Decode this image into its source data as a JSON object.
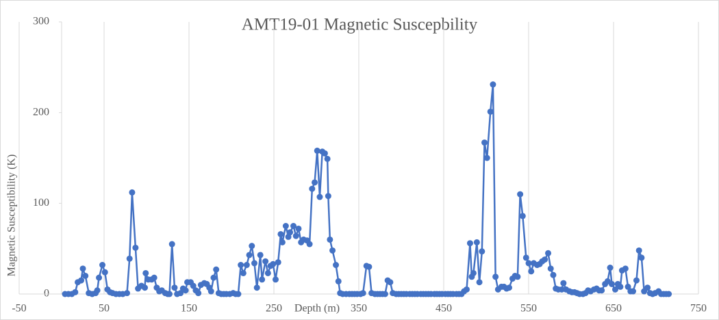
{
  "chart_data": {
    "type": "scatter",
    "title": "AMT19-01 Magnetic Suscepbility",
    "x_label": "Depth (m)",
    "y_label": "Magnetic Susceptibility (K)",
    "xlim": [
      -50,
      750
    ],
    "xticks": [
      -50,
      50,
      150,
      250,
      350,
      450,
      550,
      650,
      750
    ],
    "ylim": [
      0,
      300
    ],
    "yticks": [
      0,
      100,
      200,
      300
    ],
    "grid": "x",
    "series": [
      {
        "name": "AMT19-01",
        "color": "#4472c4",
        "x": [
          4,
          8,
          12,
          16,
          19,
          23,
          25,
          28,
          32,
          36,
          40,
          42,
          44,
          48,
          51,
          54,
          57,
          60,
          64,
          68,
          72,
          77,
          80,
          83,
          87,
          90,
          94,
          98,
          99,
          102,
          106,
          109,
          112,
          115,
          118,
          122,
          125,
          127,
          130,
          133,
          136,
          140,
          143,
          146,
          148,
          152,
          155,
          158,
          161,
          164,
          168,
          171,
          174,
          176,
          179,
          182,
          185,
          188,
          191,
          194,
          198,
          202,
          205,
          208,
          211,
          214,
          218,
          221,
          224,
          227,
          230,
          234,
          236,
          240,
          243,
          246,
          249,
          252,
          255,
          258,
          260,
          264,
          267,
          269,
          273,
          276,
          279,
          282,
          285,
          289,
          292,
          295,
          298,
          301,
          304,
          307,
          310,
          313,
          314,
          316,
          319,
          323,
          326,
          328,
          331,
          335,
          339,
          342,
          345,
          348,
          352,
          355,
          359,
          362,
          365,
          369,
          372,
          375,
          378,
          381,
          384,
          387,
          390,
          394,
          397,
          400,
          403,
          406,
          410,
          413,
          416,
          419,
          423,
          426,
          429,
          432,
          435,
          439,
          442,
          445,
          448,
          452,
          455,
          458,
          461,
          465,
          468,
          471,
          474,
          477,
          481,
          483,
          485,
          489,
          492,
          495,
          498,
          501,
          505,
          508,
          511,
          514,
          518,
          521,
          524,
          527,
          531,
          534,
          537,
          540,
          543,
          547,
          550,
          553,
          556,
          560,
          563,
          566,
          569,
          573,
          576,
          579,
          582,
          585,
          589,
          591,
          594,
          598,
          601,
          604,
          607,
          610,
          614,
          617,
          620,
          623,
          627,
          630,
          633,
          636,
          640,
          643,
          646,
          648,
          652,
          655,
          658,
          660,
          664,
          667,
          670,
          673,
          677,
          680,
          683,
          686,
          690,
          693,
          696,
          699,
          703,
          706,
          709,
          712,
          715
        ],
        "values": [
          0,
          0,
          0,
          2,
          13,
          15,
          28,
          20,
          1,
          0,
          1,
          4,
          18,
          32,
          24,
          5,
          2,
          1,
          0,
          0,
          0,
          1,
          39,
          112,
          51,
          6,
          9,
          7,
          23,
          16,
          16,
          18,
          7,
          3,
          4,
          1,
          0,
          0,
          55,
          7,
          0,
          1,
          6,
          4,
          13,
          13,
          9,
          4,
          1,
          10,
          12,
          11,
          7,
          3,
          18,
          27,
          1,
          0,
          0,
          0,
          0,
          1,
          0,
          0,
          32,
          23,
          32,
          43,
          53,
          34,
          7,
          43,
          16,
          36,
          23,
          31,
          33,
          16,
          35,
          66,
          57,
          75,
          63,
          68,
          75,
          64,
          72,
          57,
          60,
          59,
          55,
          116,
          123,
          158,
          107,
          157,
          155,
          149,
          108,
          60,
          48,
          32,
          14,
          1,
          0,
          0,
          0,
          0,
          0,
          0,
          0,
          1,
          31,
          30,
          1,
          0,
          0,
          0,
          0,
          0,
          15,
          13,
          1,
          0,
          0,
          0,
          0,
          0,
          0,
          0,
          0,
          0,
          0,
          0,
          0,
          0,
          0,
          0,
          0,
          0,
          0,
          0,
          0,
          0,
          0,
          0,
          0,
          0,
          3,
          5,
          56,
          19,
          23,
          57,
          13,
          47,
          167,
          150,
          201,
          231,
          19,
          5,
          8,
          8,
          6,
          7,
          17,
          20,
          19,
          110,
          86,
          40,
          34,
          25,
          34,
          32,
          33,
          36,
          38,
          45,
          28,
          21,
          6,
          5,
          5,
          12,
          5,
          3,
          2,
          2,
          1,
          0,
          0,
          1,
          4,
          3,
          5,
          6,
          4,
          4,
          11,
          14,
          29,
          11,
          5,
          11,
          8,
          26,
          28,
          8,
          3,
          3,
          15,
          48,
          40,
          3,
          7,
          1,
          0,
          1,
          3,
          0,
          0,
          0,
          0
        ]
      }
    ]
  }
}
